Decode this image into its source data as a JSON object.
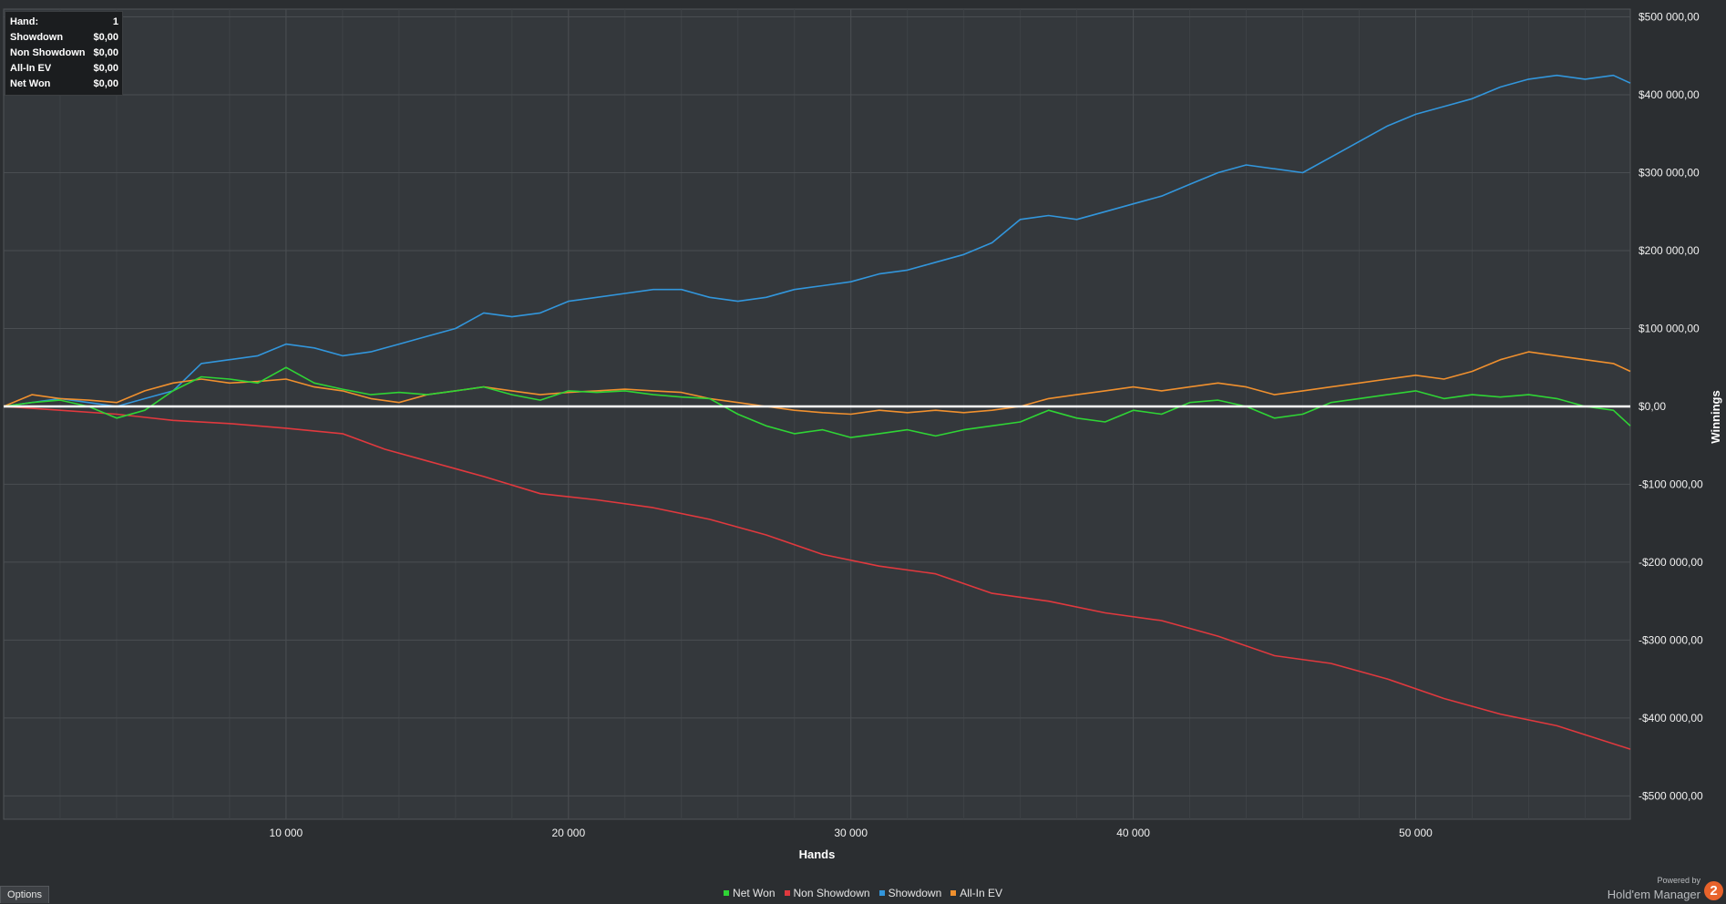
{
  "info_box": {
    "rows": [
      {
        "label": "Hand:",
        "value": "1"
      },
      {
        "label": "Showdown",
        "value": "$0,00"
      },
      {
        "label": "Non Showdown",
        "value": "$0,00"
      },
      {
        "label": "All-In EV",
        "value": "$0,00"
      },
      {
        "label": "Net Won",
        "value": "$0,00"
      }
    ]
  },
  "options_label": "Options",
  "footer": {
    "powered_by": "Powered by",
    "brand": "Hold'em Manager",
    "logo_glyph": "2"
  },
  "colors": {
    "background": "#2b2e31",
    "plot_background": "#34383c",
    "grid": "#4a4e52",
    "zero_line": "#ffffff",
    "net_won": "#2fd435",
    "non_showdown": "#e0393e",
    "showdown": "#3296dc",
    "all_in_ev": "#f0902e",
    "logo": "#e8632b"
  },
  "chart_data": {
    "type": "line",
    "xlabel": "Hands",
    "ylabel": "Winnings",
    "xlim": [
      0,
      57600
    ],
    "ylim": [
      -530000,
      510000
    ],
    "x_ticks": [
      10000,
      20000,
      30000,
      40000,
      50000
    ],
    "x_tick_labels": [
      "10 000",
      "20 000",
      "30 000",
      "40 000",
      "50 000"
    ],
    "y_ticks": [
      500000,
      400000,
      300000,
      200000,
      100000,
      0,
      -100000,
      -200000,
      -300000,
      -400000,
      -500000
    ],
    "y_tick_labels": [
      "$500 000,00",
      "$400 000,00",
      "$300 000,00",
      "$200 000,00",
      "$100 000,00",
      "$0,00",
      "-$100 000,00",
      "-$200 000,00",
      "-$300 000,00",
      "-$400 000,00",
      "-$500 000,00"
    ],
    "grid": true,
    "legend_position": "bottom",
    "series": [
      {
        "name": "Net Won",
        "color": "#2fd435",
        "x": [
          0,
          1000,
          2000,
          3000,
          4000,
          5000,
          6000,
          7000,
          8000,
          9000,
          10000,
          11000,
          12000,
          13000,
          14000,
          15000,
          16000,
          17000,
          18000,
          19000,
          20000,
          21000,
          22000,
          23000,
          24000,
          25000,
          26000,
          27000,
          28000,
          29000,
          30000,
          31000,
          32000,
          33000,
          34000,
          35000,
          36000,
          37000,
          38000,
          39000,
          40000,
          41000,
          42000,
          43000,
          44000,
          45000,
          46000,
          47000,
          48000,
          49000,
          50000,
          51000,
          52000,
          53000,
          54000,
          55000,
          56000,
          57000,
          57600
        ],
        "y": [
          0,
          5000,
          8000,
          0,
          -15000,
          -5000,
          20000,
          38000,
          35000,
          30000,
          50000,
          30000,
          22000,
          15000,
          18000,
          15000,
          20000,
          25000,
          15000,
          8000,
          20000,
          18000,
          20000,
          15000,
          12000,
          10000,
          -10000,
          -25000,
          -35000,
          -30000,
          -40000,
          -35000,
          -30000,
          -38000,
          -30000,
          -25000,
          -20000,
          -5000,
          -15000,
          -20000,
          -5000,
          -10000,
          5000,
          8000,
          0,
          -15000,
          -10000,
          5000,
          10000,
          15000,
          20000,
          10000,
          15000,
          12000,
          15000,
          10000,
          0,
          -5000,
          -25000
        ]
      },
      {
        "name": "Non Showdown",
        "color": "#e0393e",
        "x": [
          0,
          2000,
          4000,
          6000,
          8000,
          10000,
          12000,
          13500,
          15000,
          17000,
          19000,
          21000,
          23000,
          25000,
          27000,
          29000,
          31000,
          33000,
          35000,
          37000,
          39000,
          41000,
          43000,
          45000,
          47000,
          49000,
          51000,
          53000,
          55000,
          57600
        ],
        "y": [
          0,
          -5000,
          -10000,
          -18000,
          -22000,
          -28000,
          -35000,
          -55000,
          -70000,
          -90000,
          -112000,
          -120000,
          -130000,
          -145000,
          -165000,
          -190000,
          -205000,
          -215000,
          -240000,
          -250000,
          -265000,
          -275000,
          -295000,
          -320000,
          -330000,
          -350000,
          -375000,
          -395000,
          -410000,
          -440000
        ]
      },
      {
        "name": "Showdown",
        "color": "#3296dc",
        "x": [
          0,
          1000,
          2000,
          3000,
          4000,
          5000,
          6000,
          7000,
          8000,
          9000,
          10000,
          11000,
          12000,
          13000,
          14000,
          15000,
          16000,
          17000,
          18000,
          19000,
          20000,
          21000,
          22000,
          23000,
          24000,
          25000,
          26000,
          27000,
          28000,
          29000,
          30000,
          31000,
          32000,
          33000,
          34000,
          35000,
          36000,
          37000,
          38000,
          39000,
          40000,
          41000,
          42000,
          43000,
          44000,
          45000,
          46000,
          47000,
          48000,
          49000,
          50000,
          51000,
          52000,
          53000,
          54000,
          55000,
          56000,
          57000,
          57600
        ],
        "y": [
          0,
          5000,
          10000,
          5000,
          0,
          10000,
          20000,
          55000,
          60000,
          65000,
          80000,
          75000,
          65000,
          70000,
          80000,
          90000,
          100000,
          120000,
          115000,
          120000,
          135000,
          140000,
          145000,
          150000,
          150000,
          140000,
          135000,
          140000,
          150000,
          155000,
          160000,
          170000,
          175000,
          185000,
          195000,
          210000,
          240000,
          245000,
          240000,
          250000,
          260000,
          270000,
          285000,
          300000,
          310000,
          305000,
          300000,
          320000,
          340000,
          360000,
          375000,
          385000,
          395000,
          410000,
          420000,
          425000,
          420000,
          425000,
          415000
        ]
      },
      {
        "name": "All-In EV",
        "color": "#f0902e",
        "x": [
          0,
          1000,
          2000,
          3000,
          4000,
          5000,
          6000,
          7000,
          8000,
          9000,
          10000,
          11000,
          12000,
          13000,
          14000,
          15000,
          16000,
          17000,
          18000,
          19000,
          20000,
          21000,
          22000,
          23000,
          24000,
          25000,
          26000,
          27000,
          28000,
          29000,
          30000,
          31000,
          32000,
          33000,
          34000,
          35000,
          36000,
          37000,
          38000,
          39000,
          40000,
          41000,
          42000,
          43000,
          44000,
          45000,
          46000,
          47000,
          48000,
          49000,
          50000,
          51000,
          52000,
          53000,
          54000,
          55000,
          56000,
          57000,
          57600
        ],
        "y": [
          0,
          15000,
          10000,
          8000,
          5000,
          20000,
          30000,
          35000,
          30000,
          32000,
          35000,
          25000,
          20000,
          10000,
          5000,
          15000,
          20000,
          25000,
          20000,
          15000,
          18000,
          20000,
          22000,
          20000,
          18000,
          10000,
          5000,
          0,
          -5000,
          -8000,
          -10000,
          -5000,
          -8000,
          -5000,
          -8000,
          -5000,
          0,
          10000,
          15000,
          20000,
          25000,
          20000,
          25000,
          30000,
          25000,
          15000,
          20000,
          25000,
          30000,
          35000,
          40000,
          35000,
          45000,
          60000,
          70000,
          65000,
          60000,
          55000,
          45000
        ]
      },
      {
        "name": "zero",
        "color": "#ffffff",
        "x": [
          0,
          57600
        ],
        "y": [
          0,
          0
        ]
      }
    ]
  }
}
